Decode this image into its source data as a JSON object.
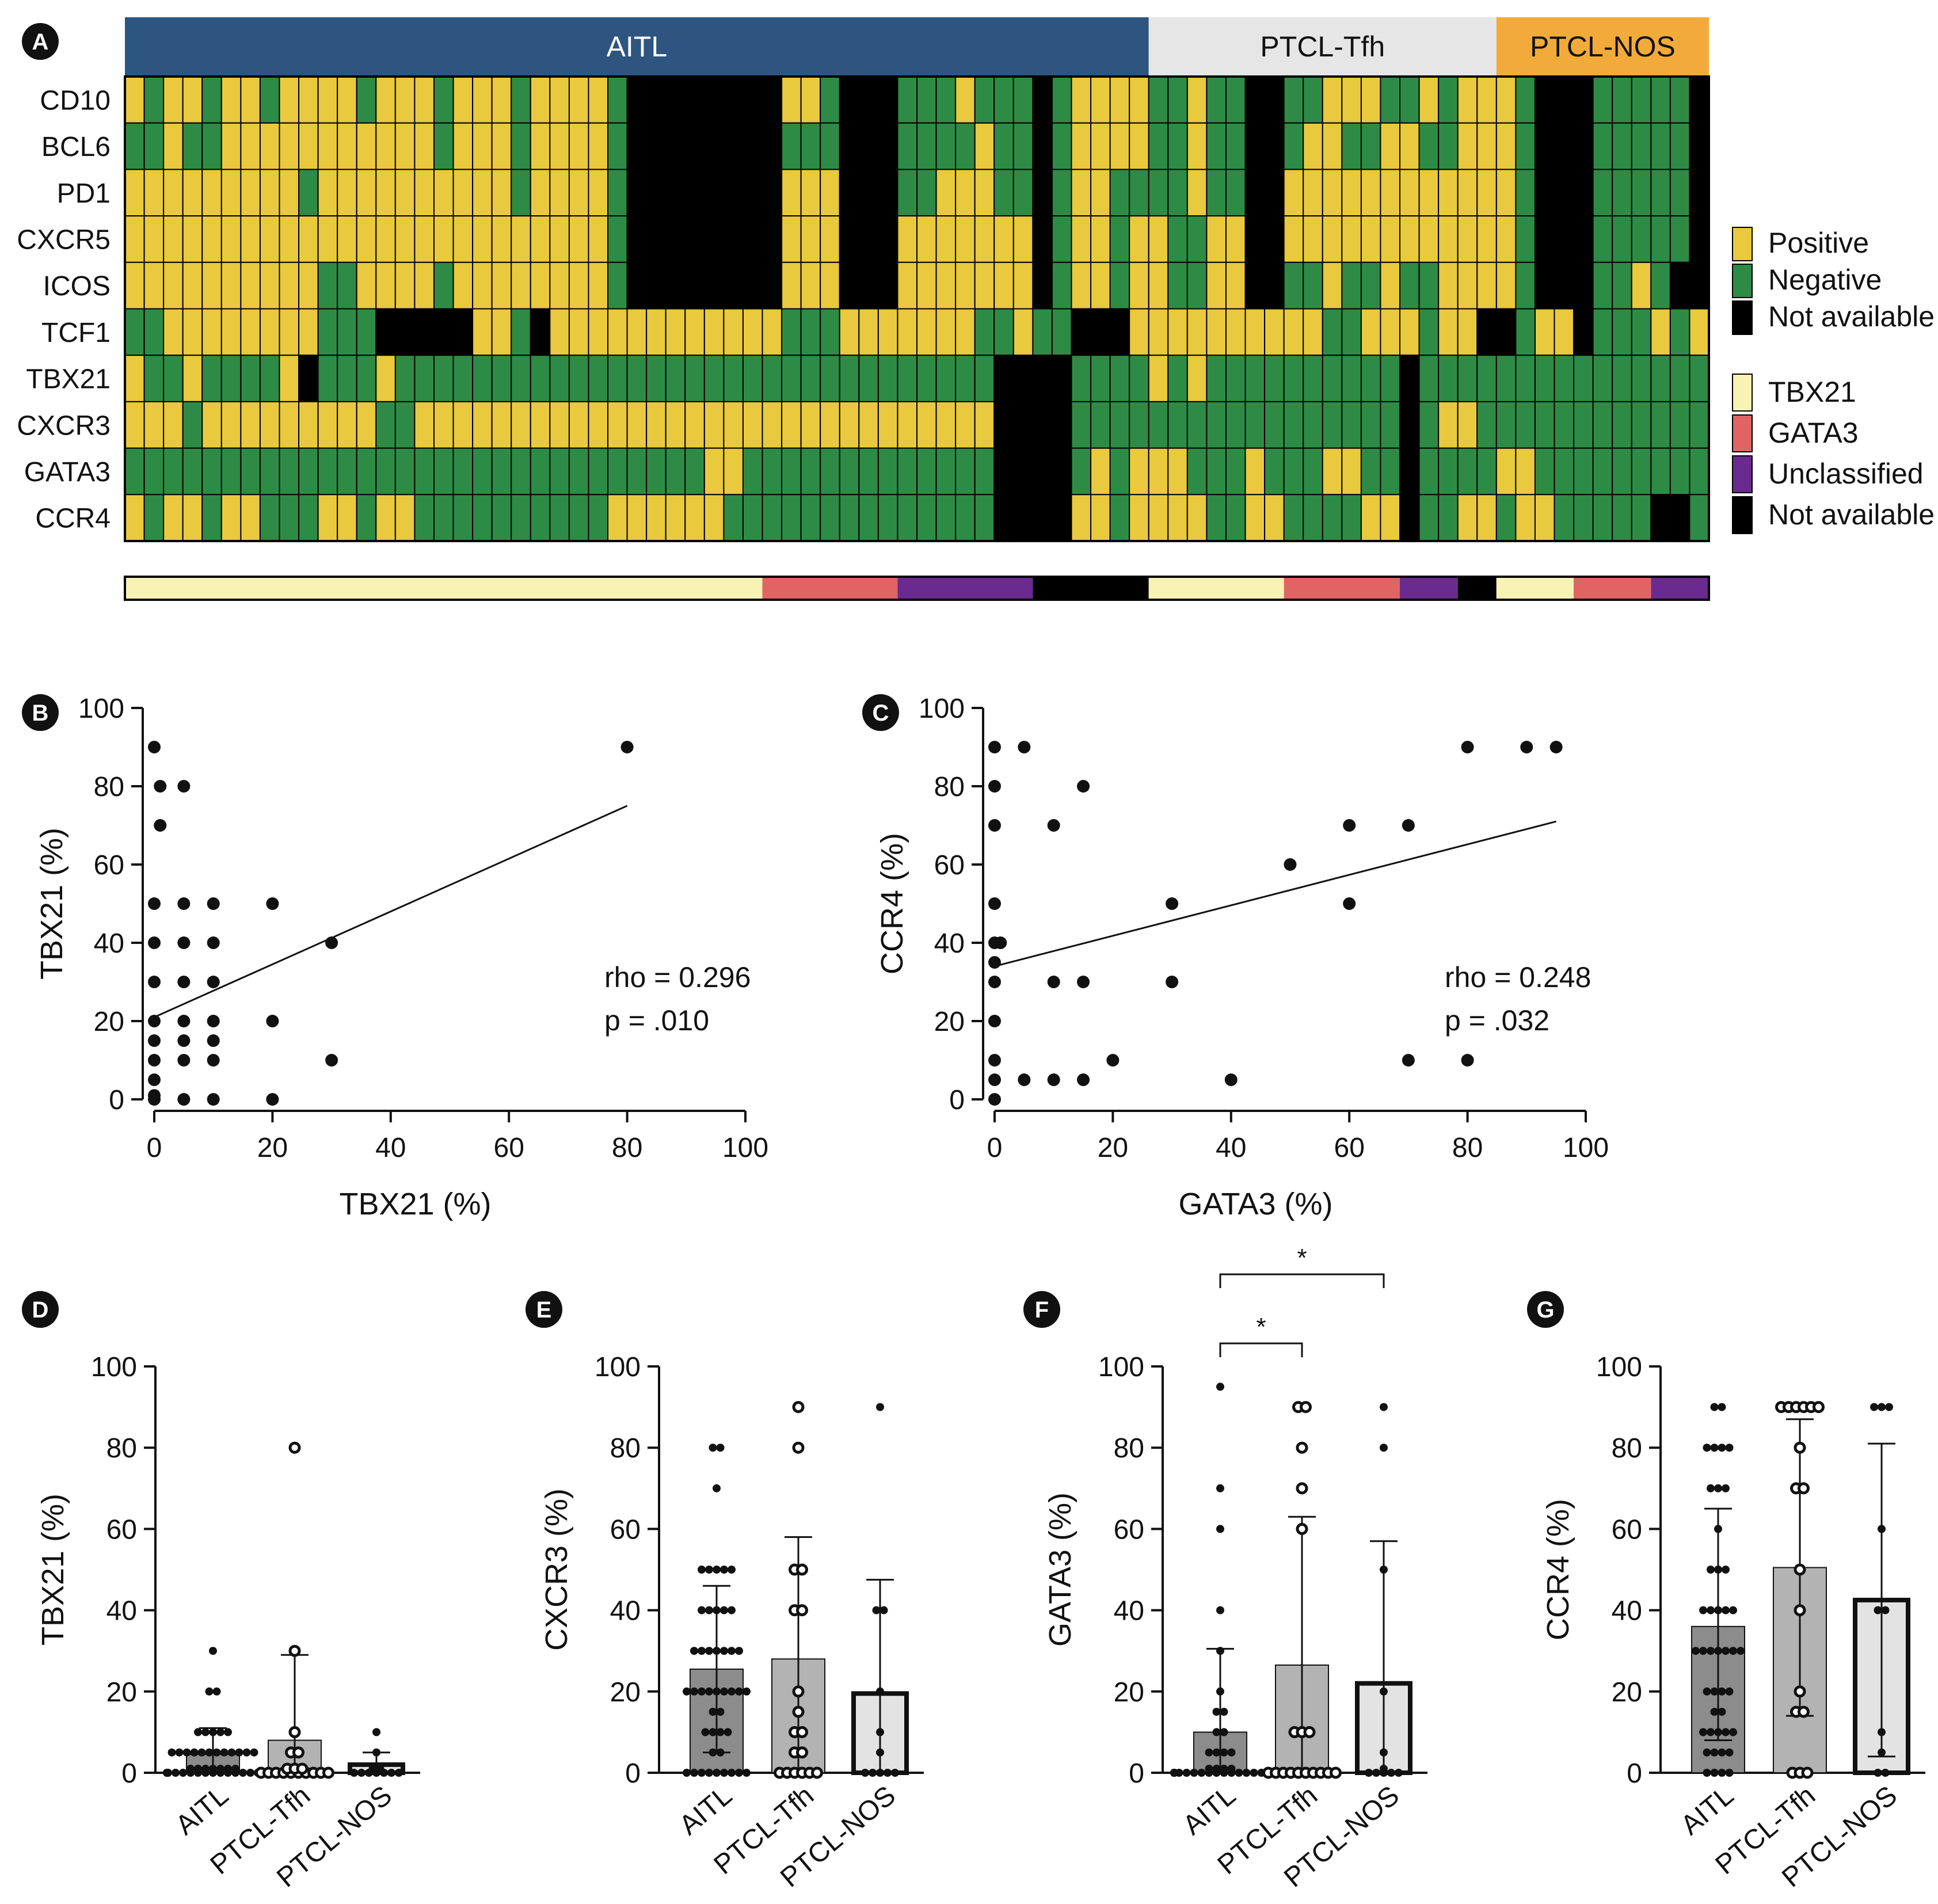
{
  "colors": {
    "positive": "#E9C93D",
    "negative": "#2E8B45",
    "not_available": "#000000",
    "tbx21": "#F7F3B5",
    "gata3": "#E06464",
    "unclassified": "#6B2A8F",
    "aitl_header": "#2D5580",
    "tfh_header": "#E6E6E6",
    "nos_header": "#F2AB3A",
    "bar_aitl": "#8C8C8C",
    "bar_tfh": "#B3B3B3",
    "bar_nos": "#E3E3E3"
  },
  "chart_data": [
    {
      "panel": "A",
      "type": "heatmap",
      "groups": [
        {
          "name": "AITL",
          "count": 53
        },
        {
          "name": "PTCL-Tfh",
          "count": 18
        },
        {
          "name": "PTCL-NOS",
          "count": 11
        }
      ],
      "rows": [
        "CD10",
        "BCL6",
        "PD1",
        "CXCR5",
        "ICOS",
        "TCF1",
        "TBX21",
        "CXCR3",
        "GATA3",
        "CCR4"
      ],
      "legend_status": [
        "Positive",
        "Negative",
        "Not available"
      ],
      "legend_class": [
        "TBX21",
        "GATA3",
        "Unclassified",
        "Not available"
      ],
      "cell_codes": "P = Positive, N = Negative, X = Not available",
      "cells": [
        "PNPPNPPNPPPPNPPPNPPPNPPPPNXXXXXXXXPPNXXXNNNPNNNXNPPPPNNPNNXXNNPPPNNPNPPPNXXXNNNNNX",
        "NNPNNPPPPPPPPPPPNPPPNPPPPNXXXXXXXXNNNXXXNNNNPNNXNPPPPNNPNNXXNPPNNPPNNPPPNXXXNNNNNX",
        "PPPPPPPPPNPPPPPPPPPPNPPPPNXXXXXXXXPPPXXXNNPPPNNXNPPNNNNPNNXXPPPPPPPPPPPPNXXXNNNNNX",
        "PPPPPPPPPPPPPPPPPPPPPPPPPNXXXXXXXXPPPXXXPPPPPPPXNPPNPPNNPPXXPPPPPPPPPPPPNXXXNNNNNX",
        "PPPPPPPPPPNNPPPPNPPPPPPPPNXXXXXXXXPPPXXXPPPPPPPXNPPNPPNNPPXXNNPNNPNNPPPPNXXXNNPNXX",
        "NNPPPPPPPPNNNXXXXXPPNXPPPPPPPPPPPPNNNPPPPPPPNNPNNXXXPPPPPPPPPPNNPPPNPPXXNPPXNNNPNP",
        "PNNPNNNNPXNNNPNNNNNNNNNNNNNNNNNNNNNNNNNNNNNNNXXXXNNNNPNPNNNNNNNNNNXNNNNNNNNNNNNNNN",
        "PPPNPPPPPPPPPNNPPPPPPPPPPPPPPPPPPPPPPPPPPPPPPXXXXNNNNNNNNNNNNNNNNNXNPPNNNNNNNNNNNN",
        "NNNNNNNNNNNNNNNNNNNNNNNNNNNNNNPPNNNNNNNNNNNNNXXXXNPNPPPNNNPNNNPPNNXNNNNPPNNNNNNNNN",
        "PNPPNPPNNNPPNPPNNNNNNNNNNPPPPPPNNNNNNNNNNNNNNXXXXPPNPPPPNNPPNNNNPPXNNPPNPPNNNNNXXN"
      ],
      "class_bar": [
        {
          "label": "TBX21",
          "count": 33
        },
        {
          "label": "GATA3",
          "count": 7
        },
        {
          "label": "Unclassified",
          "count": 7
        },
        {
          "label": "Not available",
          "count": 6
        },
        {
          "label": "TBX21",
          "count": 7
        },
        {
          "label": "GATA3",
          "count": 6
        },
        {
          "label": "Unclassified",
          "count": 3
        },
        {
          "label": "Not available",
          "count": 2
        },
        {
          "label": "TBX21",
          "count": 4
        },
        {
          "label": "GATA3",
          "count": 4
        },
        {
          "label": "Unclassified",
          "count": 3
        }
      ]
    },
    {
      "panel": "B",
      "type": "scatter",
      "xlabel": "TBX21 (%)",
      "ylabel": "TBX21 (%)",
      "xlim": [
        0,
        100
      ],
      "ylim": [
        0,
        100
      ],
      "ticks": [
        0,
        20,
        40,
        60,
        80,
        100
      ],
      "points": [
        [
          0,
          90
        ],
        [
          1,
          80
        ],
        [
          1,
          70
        ],
        [
          5,
          80
        ],
        [
          0,
          50
        ],
        [
          0,
          40
        ],
        [
          0,
          30
        ],
        [
          0,
          20
        ],
        [
          0,
          15
        ],
        [
          0,
          10
        ],
        [
          0,
          5
        ],
        [
          0,
          1
        ],
        [
          0,
          0
        ],
        [
          5,
          50
        ],
        [
          5,
          40
        ],
        [
          5,
          30
        ],
        [
          5,
          20
        ],
        [
          5,
          15
        ],
        [
          5,
          10
        ],
        [
          5,
          0
        ],
        [
          10,
          50
        ],
        [
          10,
          40
        ],
        [
          10,
          30
        ],
        [
          10,
          20
        ],
        [
          10,
          15
        ],
        [
          10,
          10
        ],
        [
          10,
          0
        ],
        [
          20,
          50
        ],
        [
          20,
          20
        ],
        [
          20,
          0
        ],
        [
          30,
          40
        ],
        [
          30,
          10
        ],
        [
          80,
          90
        ]
      ],
      "fit": [
        [
          0,
          21
        ],
        [
          80,
          75
        ]
      ],
      "stat_rho": "rho = 0.296",
      "stat_p": "p = .010"
    },
    {
      "panel": "C",
      "type": "scatter",
      "xlabel": "GATA3 (%)",
      "ylabel": "CCR4 (%)",
      "xlim": [
        0,
        100
      ],
      "ylim": [
        0,
        100
      ],
      "ticks": [
        0,
        20,
        40,
        60,
        80,
        100
      ],
      "points": [
        [
          0,
          90
        ],
        [
          0,
          80
        ],
        [
          0,
          70
        ],
        [
          0,
          50
        ],
        [
          0,
          40
        ],
        [
          1,
          40
        ],
        [
          0,
          35
        ],
        [
          0,
          30
        ],
        [
          0,
          20
        ],
        [
          0,
          10
        ],
        [
          0,
          5
        ],
        [
          0,
          0
        ],
        [
          5,
          90
        ],
        [
          5,
          5
        ],
        [
          10,
          70
        ],
        [
          10,
          30
        ],
        [
          10,
          5
        ],
        [
          15,
          80
        ],
        [
          15,
          30
        ],
        [
          15,
          5
        ],
        [
          20,
          10
        ],
        [
          30,
          50
        ],
        [
          30,
          30
        ],
        [
          40,
          5
        ],
        [
          50,
          60
        ],
        [
          60,
          70
        ],
        [
          60,
          50
        ],
        [
          70,
          70
        ],
        [
          70,
          10
        ],
        [
          80,
          90
        ],
        [
          80,
          10
        ],
        [
          90,
          90
        ],
        [
          95,
          90
        ]
      ],
      "fit": [
        [
          0,
          34
        ],
        [
          95,
          71
        ]
      ],
      "stat_rho": "rho = 0.248",
      "stat_p": "p = .032"
    },
    {
      "panel": "D",
      "type": "bar",
      "ylabel": "TBX21 (%)",
      "categories": [
        "AITL",
        "PTCL-Tfh",
        "PTCL-NOS"
      ],
      "values": [
        4.5,
        8,
        2
      ],
      "error_upper": [
        11,
        29,
        5
      ],
      "error_lower": [
        0,
        0,
        0
      ],
      "ylim": [
        0,
        100
      ],
      "ticks": [
        0,
        20,
        40,
        60,
        80,
        100
      ],
      "points": [
        [
          30,
          20,
          20,
          10,
          10,
          10,
          10,
          10,
          5,
          5,
          5,
          5,
          5,
          5,
          5,
          5,
          5,
          5,
          5,
          5,
          1,
          1,
          1,
          1,
          1,
          1,
          1,
          0,
          0,
          0,
          0,
          0,
          0,
          0,
          0,
          0,
          0,
          0,
          0,
          0,
          0,
          0,
          0,
          0,
          0,
          0
        ],
        [
          80,
          30,
          10,
          5,
          5,
          1,
          1,
          1,
          0,
          0,
          0,
          0,
          0,
          0,
          0,
          0,
          0,
          0
        ],
        [
          10,
          5,
          1,
          1,
          0,
          0,
          0,
          0,
          0,
          0,
          0
        ]
      ],
      "significance": []
    },
    {
      "panel": "E",
      "type": "bar",
      "ylabel": "CXCR3 (%)",
      "categories": [
        "AITL",
        "PTCL-Tfh",
        "PTCL-NOS"
      ],
      "values": [
        25.5,
        28,
        19.5
      ],
      "error_upper": [
        46,
        58,
        47.5
      ],
      "error_lower": [
        5,
        0,
        0
      ],
      "ylim": [
        0,
        100
      ],
      "ticks": [
        0,
        20,
        40,
        60,
        80,
        100
      ],
      "points": [
        [
          80,
          80,
          70,
          50,
          50,
          50,
          50,
          50,
          40,
          40,
          40,
          40,
          40,
          30,
          30,
          30,
          30,
          30,
          30,
          30,
          20,
          20,
          20,
          20,
          20,
          20,
          20,
          20,
          20,
          15,
          15,
          10,
          10,
          10,
          10,
          5,
          5,
          0,
          0,
          0,
          0,
          0,
          0,
          0,
          0,
          0
        ],
        [
          90,
          80,
          50,
          50,
          40,
          40,
          20,
          15,
          10,
          10,
          5,
          5,
          0,
          0,
          0,
          0,
          0,
          0
        ],
        [
          90,
          40,
          40,
          20,
          10,
          5,
          0,
          0,
          0,
          0,
          0
        ]
      ],
      "significance": []
    },
    {
      "panel": "F",
      "type": "bar",
      "ylabel": "GATA3 (%)",
      "categories": [
        "AITL",
        "PTCL-Tfh",
        "PTCL-NOS"
      ],
      "values": [
        10,
        26.5,
        22
      ],
      "error_upper": [
        30.5,
        63,
        57
      ],
      "error_lower": [
        0,
        0,
        0
      ],
      "ylim": [
        0,
        100
      ],
      "ticks": [
        0,
        20,
        40,
        60,
        80,
        100
      ],
      "points": [
        [
          95,
          70,
          60,
          40,
          30,
          20,
          15,
          15,
          10,
          10,
          5,
          5,
          5,
          5,
          1,
          1,
          1,
          1,
          0,
          0,
          0,
          0,
          0,
          0,
          0,
          0,
          0,
          0,
          0,
          0,
          0,
          0,
          0,
          0,
          0,
          0,
          0,
          0,
          0,
          0,
          0,
          0,
          0,
          0,
          0,
          0
        ],
        [
          90,
          90,
          80,
          70,
          60,
          10,
          10,
          10,
          0,
          0,
          0,
          0,
          0,
          0,
          0,
          0,
          0,
          0
        ],
        [
          90,
          80,
          50,
          20,
          5,
          1,
          0,
          0,
          0,
          0,
          0
        ]
      ],
      "significance": [
        {
          "from": "AITL",
          "to": "PTCL-Tfh",
          "label": "*"
        },
        {
          "from": "AITL",
          "to": "PTCL-NOS",
          "label": "*"
        }
      ]
    },
    {
      "panel": "G",
      "type": "bar",
      "ylabel": "CCR4 (%)",
      "categories": [
        "AITL",
        "PTCL-Tfh",
        "PTCL-NOS"
      ],
      "values": [
        36,
        50.5,
        42.5
      ],
      "error_upper": [
        65,
        87,
        81
      ],
      "error_lower": [
        8,
        14,
        4
      ],
      "ylim": [
        0,
        100
      ],
      "ticks": [
        0,
        20,
        40,
        60,
        80,
        100
      ],
      "points": [
        [
          90,
          90,
          80,
          80,
          80,
          80,
          70,
          70,
          70,
          60,
          50,
          50,
          50,
          40,
          40,
          40,
          40,
          40,
          30,
          30,
          30,
          30,
          30,
          30,
          30,
          20,
          20,
          20,
          20,
          15,
          15,
          10,
          10,
          10,
          10,
          10,
          5,
          5,
          5,
          5,
          0,
          0,
          0,
          0
        ],
        [
          90,
          90,
          90,
          90,
          90,
          90,
          80,
          70,
          70,
          50,
          40,
          20,
          15,
          15,
          0,
          0,
          0
        ],
        [
          90,
          90,
          90,
          60,
          40,
          40,
          10,
          5,
          0,
          0
        ]
      ],
      "significance": []
    }
  ]
}
